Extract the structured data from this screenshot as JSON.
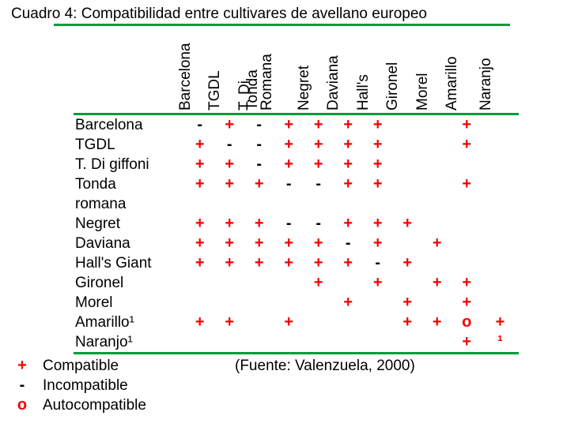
{
  "title": "Cuadro 4: Compatibilidad entre cultivares de avellano europeo",
  "source": "(Fuente: Valenzuela, 2000)",
  "colors": {
    "green": "#009B3A",
    "red": "#F40000",
    "black": "#000000"
  },
  "table": {
    "columns": [
      "Barcelona",
      "TGDL",
      "T. Di",
      "Tonda\nRomana",
      "Negret",
      "Daviana",
      "Hall's",
      "Gironel",
      "Morel",
      "Amarillo",
      "Naranjo"
    ],
    "rows": [
      {
        "label": "Barcelona",
        "cells": [
          "-",
          "+",
          "-",
          "+",
          "+",
          "+",
          "+",
          "",
          "",
          "+",
          ""
        ]
      },
      {
        "label": "TGDL",
        "cells": [
          "+",
          "-",
          "-",
          "+",
          "+",
          "+",
          "+",
          "",
          "",
          "+",
          ""
        ]
      },
      {
        "label": "T. Di giffoni",
        "cells": [
          "+",
          "+",
          "-",
          "+",
          "+",
          "+",
          "+",
          "",
          "",
          "",
          ""
        ]
      },
      {
        "label": "Tonda\nromana",
        "cells": [
          "+",
          "+",
          "+",
          "-",
          "-",
          "+",
          "+",
          "",
          "",
          "+",
          ""
        ]
      },
      {
        "label": "Negret",
        "cells": [
          "+",
          "+",
          "+",
          "-",
          "-",
          "+",
          "+",
          "+",
          "",
          "",
          ""
        ]
      },
      {
        "label": "Daviana",
        "cells": [
          "+",
          "+",
          "+",
          "+",
          "+",
          "-",
          "+",
          "",
          "+",
          "",
          ""
        ]
      },
      {
        "label": "Hall's Giant",
        "cells": [
          "+",
          "+",
          "+",
          "+",
          "+",
          "+",
          "-",
          "+",
          "",
          "",
          ""
        ]
      },
      {
        "label": "Gironel",
        "cells": [
          "",
          "",
          "",
          "",
          "+",
          "",
          "+",
          "",
          "+",
          "+",
          ""
        ]
      },
      {
        "label": "Morel",
        "cells": [
          "",
          "",
          "",
          "",
          "",
          "+",
          "",
          "+",
          "",
          "+",
          ""
        ]
      },
      {
        "label": "Amarillo¹",
        "cells": [
          "+",
          "+",
          "",
          "+",
          "",
          "",
          "",
          "+",
          "+",
          "o",
          "+"
        ]
      },
      {
        "label": "Naranjo¹",
        "cells": [
          "",
          "",
          "",
          "",
          "",
          "",
          "",
          "",
          "",
          "+",
          "¹"
        ]
      }
    ]
  },
  "legend": [
    {
      "symbol": "+",
      "color": "red",
      "label": "Compatible"
    },
    {
      "symbol": "-",
      "color": "black",
      "label": "Incompatible"
    },
    {
      "symbol": "o",
      "color": "red",
      "label": "Autocompatible"
    }
  ]
}
